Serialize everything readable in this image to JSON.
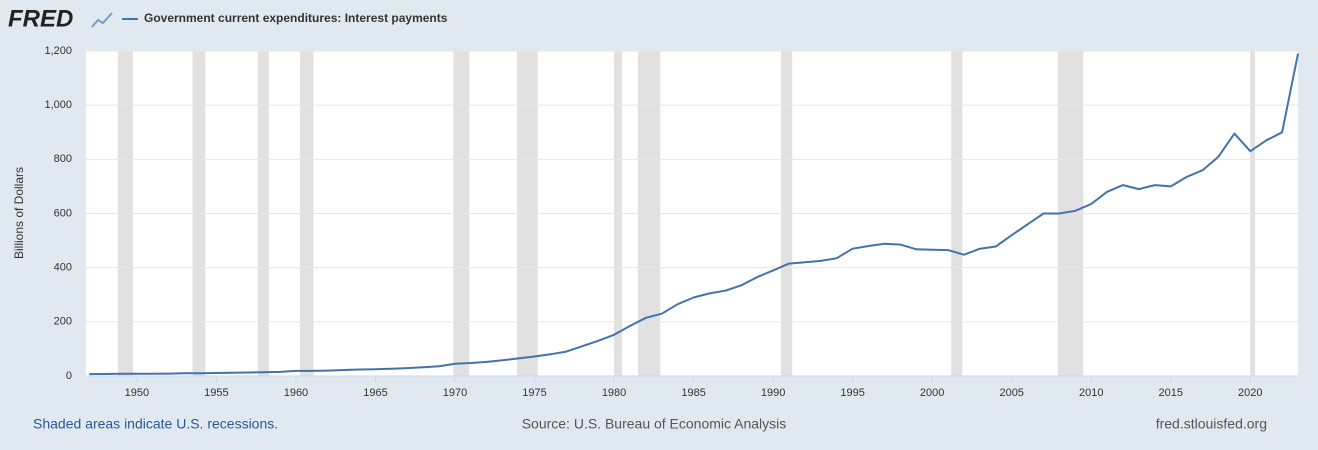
{
  "chart_data": {
    "type": "line",
    "logo": "FRED",
    "y_label": "Billions of Dollars",
    "footer_left": "Shaded areas indicate U.S. recessions.",
    "footer_center": "Source: U.S. Bureau of Economic Analysis",
    "footer_right": "fred.stlouisfed.org",
    "x": [
      1947,
      1948,
      1949,
      1950,
      1951,
      1952,
      1953,
      1954,
      1955,
      1956,
      1957,
      1958,
      1959,
      1960,
      1961,
      1962,
      1963,
      1964,
      1965,
      1966,
      1967,
      1968,
      1969,
      1970,
      1971,
      1972,
      1973,
      1974,
      1975,
      1976,
      1977,
      1978,
      1979,
      1980,
      1981,
      1982,
      1983,
      1984,
      1985,
      1986,
      1987,
      1988,
      1989,
      1990,
      1991,
      1992,
      1993,
      1994,
      1995,
      1996,
      1997,
      1998,
      1999,
      2000,
      2001,
      2002,
      2003,
      2004,
      2005,
      2006,
      2007,
      2008,
      2009,
      2010,
      2011,
      2012,
      2013,
      2014,
      2015,
      2016,
      2017,
      2018,
      2019,
      2020,
      2021,
      2022,
      2023
    ],
    "series": [
      {
        "name": "Government current expenditures: Interest payments",
        "color": "#4572a7",
        "values": [
          7,
          7.5,
          8,
          8,
          8.5,
          9,
          10,
          10.5,
          11,
          12,
          13,
          14,
          15,
          19,
          19,
          20,
          22,
          24,
          25,
          27,
          29,
          32,
          36,
          45,
          48,
          52,
          58,
          65,
          72,
          80,
          90,
          110,
          130,
          152,
          185,
          215,
          230,
          265,
          290,
          305,
          315,
          335,
          365,
          390,
          415,
          420,
          425,
          435,
          470,
          480,
          488,
          485,
          468,
          466,
          465,
          448,
          470,
          478,
          520,
          560,
          600,
          600,
          610,
          635,
          680,
          705,
          690,
          705,
          700,
          735,
          760,
          810,
          895,
          830,
          870,
          900,
          1190
        ]
      }
    ],
    "recessions": [
      [
        1948.8,
        1949.75
      ],
      [
        1953.5,
        1954.3
      ],
      [
        1957.6,
        1958.3
      ],
      [
        1960.25,
        1961.1
      ],
      [
        1969.9,
        1970.9
      ],
      [
        1973.9,
        1975.2
      ],
      [
        1980.0,
        1980.5
      ],
      [
        1981.5,
        1982.9
      ],
      [
        1990.5,
        1991.2
      ],
      [
        2001.2,
        2001.9
      ],
      [
        2007.9,
        2009.5
      ],
      [
        2020.0,
        2020.3
      ]
    ],
    "recession_color": "#e1e1e1",
    "xlim": [
      1946.8,
      2023.0
    ],
    "xticks": [
      1950,
      1955,
      1960,
      1965,
      1970,
      1975,
      1980,
      1985,
      1990,
      1995,
      2000,
      2005,
      2010,
      2015,
      2020
    ],
    "ylim": [
      0,
      1200
    ],
    "yticks": [
      0,
      200,
      400,
      600,
      800,
      {
        "value": 1000,
        "label": "1,000"
      },
      {
        "value": 1200,
        "label": "1,200"
      }
    ],
    "grid": true
  }
}
